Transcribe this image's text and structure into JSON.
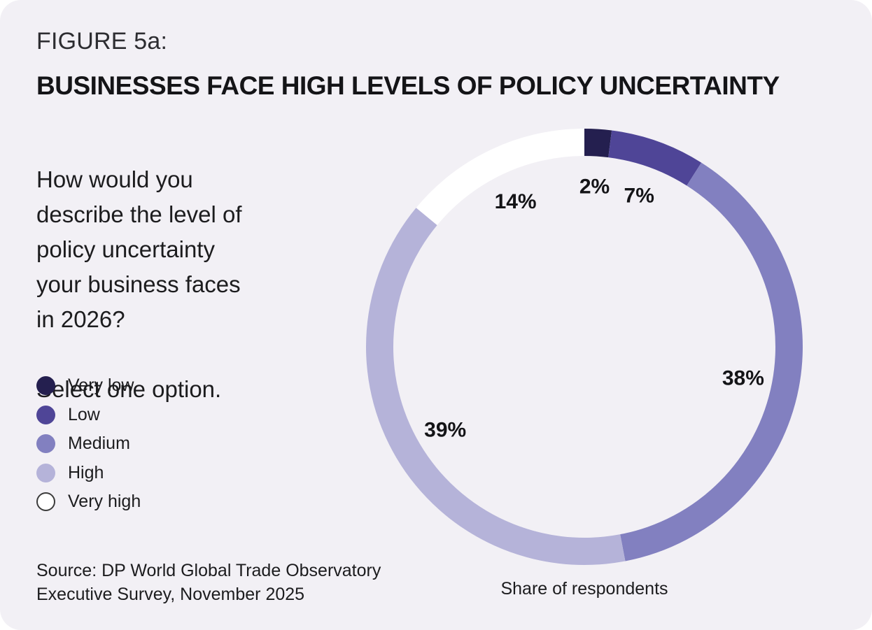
{
  "figure": {
    "label": "FIGURE 5a:",
    "title": "BUSINESSES FACE HIGH LEVELS OF POLICY UNCERTAINTY"
  },
  "question": {
    "text": "How would you\ndescribe the level of\npolicy uncertainty\nyour business faces\nin 2026?",
    "instruction": "Select one option."
  },
  "legend": {
    "items": [
      {
        "label": "Very low",
        "color": "#241F4F",
        "border": ""
      },
      {
        "label": "Low",
        "color": "#4F4597",
        "border": ""
      },
      {
        "label": "Medium",
        "color": "#8280C0",
        "border": ""
      },
      {
        "label": "High",
        "color": "#B5B3D9",
        "border": ""
      },
      {
        "label": "Very high",
        "color": "#FFFFFF",
        "border": "#3B3B3B"
      }
    ]
  },
  "source": {
    "line1": "Source: DP World Global Trade Observatory",
    "line2": "Executive Survey, November 2025"
  },
  "chart_data": {
    "type": "pie",
    "donut": true,
    "title": "BUSINESSES FACE HIGH LEVELS OF POLICY UNCERTAINTY",
    "categories": [
      "Very low",
      "Low",
      "Medium",
      "High",
      "Very high"
    ],
    "values": [
      2,
      7,
      38,
      39,
      14
    ],
    "labels": [
      "2%",
      "7%",
      "38%",
      "39%",
      "14%"
    ],
    "colors": [
      "#241F4F",
      "#4F4597",
      "#8280C0",
      "#B5B3D9",
      "#FFFFFF"
    ],
    "unit": "%",
    "start_angle_deg": 0,
    "direction": "clockwise",
    "xlabel": "Share of respondents",
    "legend_position": "left"
  },
  "colors": {
    "page_bg": "#FFFFFF",
    "card_bg": "#F2F0F5",
    "text": "#1C1C1E",
    "title_text": "#141417"
  }
}
